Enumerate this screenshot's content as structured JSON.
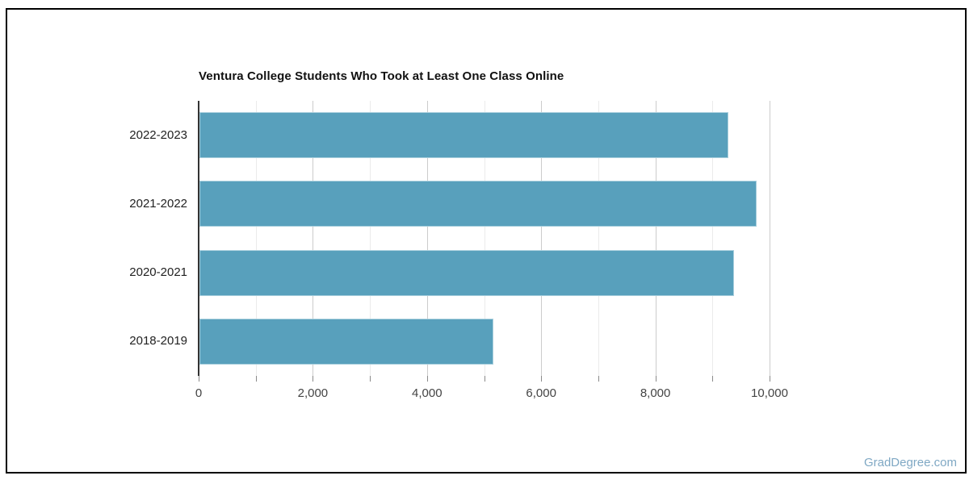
{
  "page": {
    "watermark": {
      "label": "GradDegree.com",
      "color": "#7fa8c4"
    }
  },
  "chart_data": {
    "type": "bar",
    "orientation": "horizontal",
    "title": "Ventura College Students Who Took at Least One Class Online",
    "categories": [
      "2022-2023",
      "2021-2022",
      "2020-2021",
      "2018-2019"
    ],
    "values": [
      9260,
      9760,
      9370,
      5150
    ],
    "xlabel": "",
    "ylabel": "",
    "xlim": [
      0,
      10000
    ],
    "x_tick_values": [
      0,
      2000,
      4000,
      6000,
      8000,
      10000
    ],
    "x_tick_labels": [
      "0",
      "2,000",
      "4,000",
      "6,000",
      "8,000",
      "10,000"
    ],
    "minor_gridline_step": 1000,
    "grid": true,
    "legend": "none",
    "colors": {
      "bar": "#58a0bc",
      "bar_edge": "#a9cfdd",
      "major_gridline": "#cccccc",
      "minor_gridline": "#ebebeb",
      "axis_line": "#333333",
      "tick_label": "#444444",
      "category_label": "#222222",
      "title": "#111111"
    }
  }
}
